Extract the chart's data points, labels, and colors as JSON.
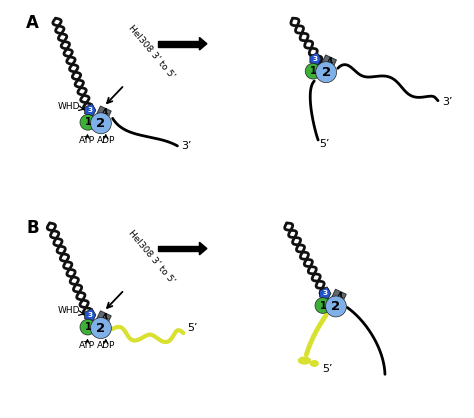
{
  "bg_color": "#ffffff",
  "black": "#111111",
  "green_color": "#3db038",
  "blue_dark": "#2255cc",
  "blue_light": "#80b0e8",
  "grey_color": "#606870",
  "yellow_color": "#d8e030",
  "label_A": "A",
  "label_B": "B",
  "label_hel": "Hel308 3’ to 5’",
  "label_WHD": "WHD",
  "label_ATP": "ATP",
  "label_ADP": "ADP",
  "label_3p": "3’",
  "label_5p": "5’",
  "panel_positions": {
    "AL": [
      0.02,
      0.51,
      0.46,
      0.47
    ],
    "AR": [
      0.52,
      0.51,
      0.46,
      0.47
    ],
    "BL": [
      0.02,
      0.02,
      0.46,
      0.47
    ],
    "BR": [
      0.52,
      0.02,
      0.46,
      0.47
    ]
  }
}
